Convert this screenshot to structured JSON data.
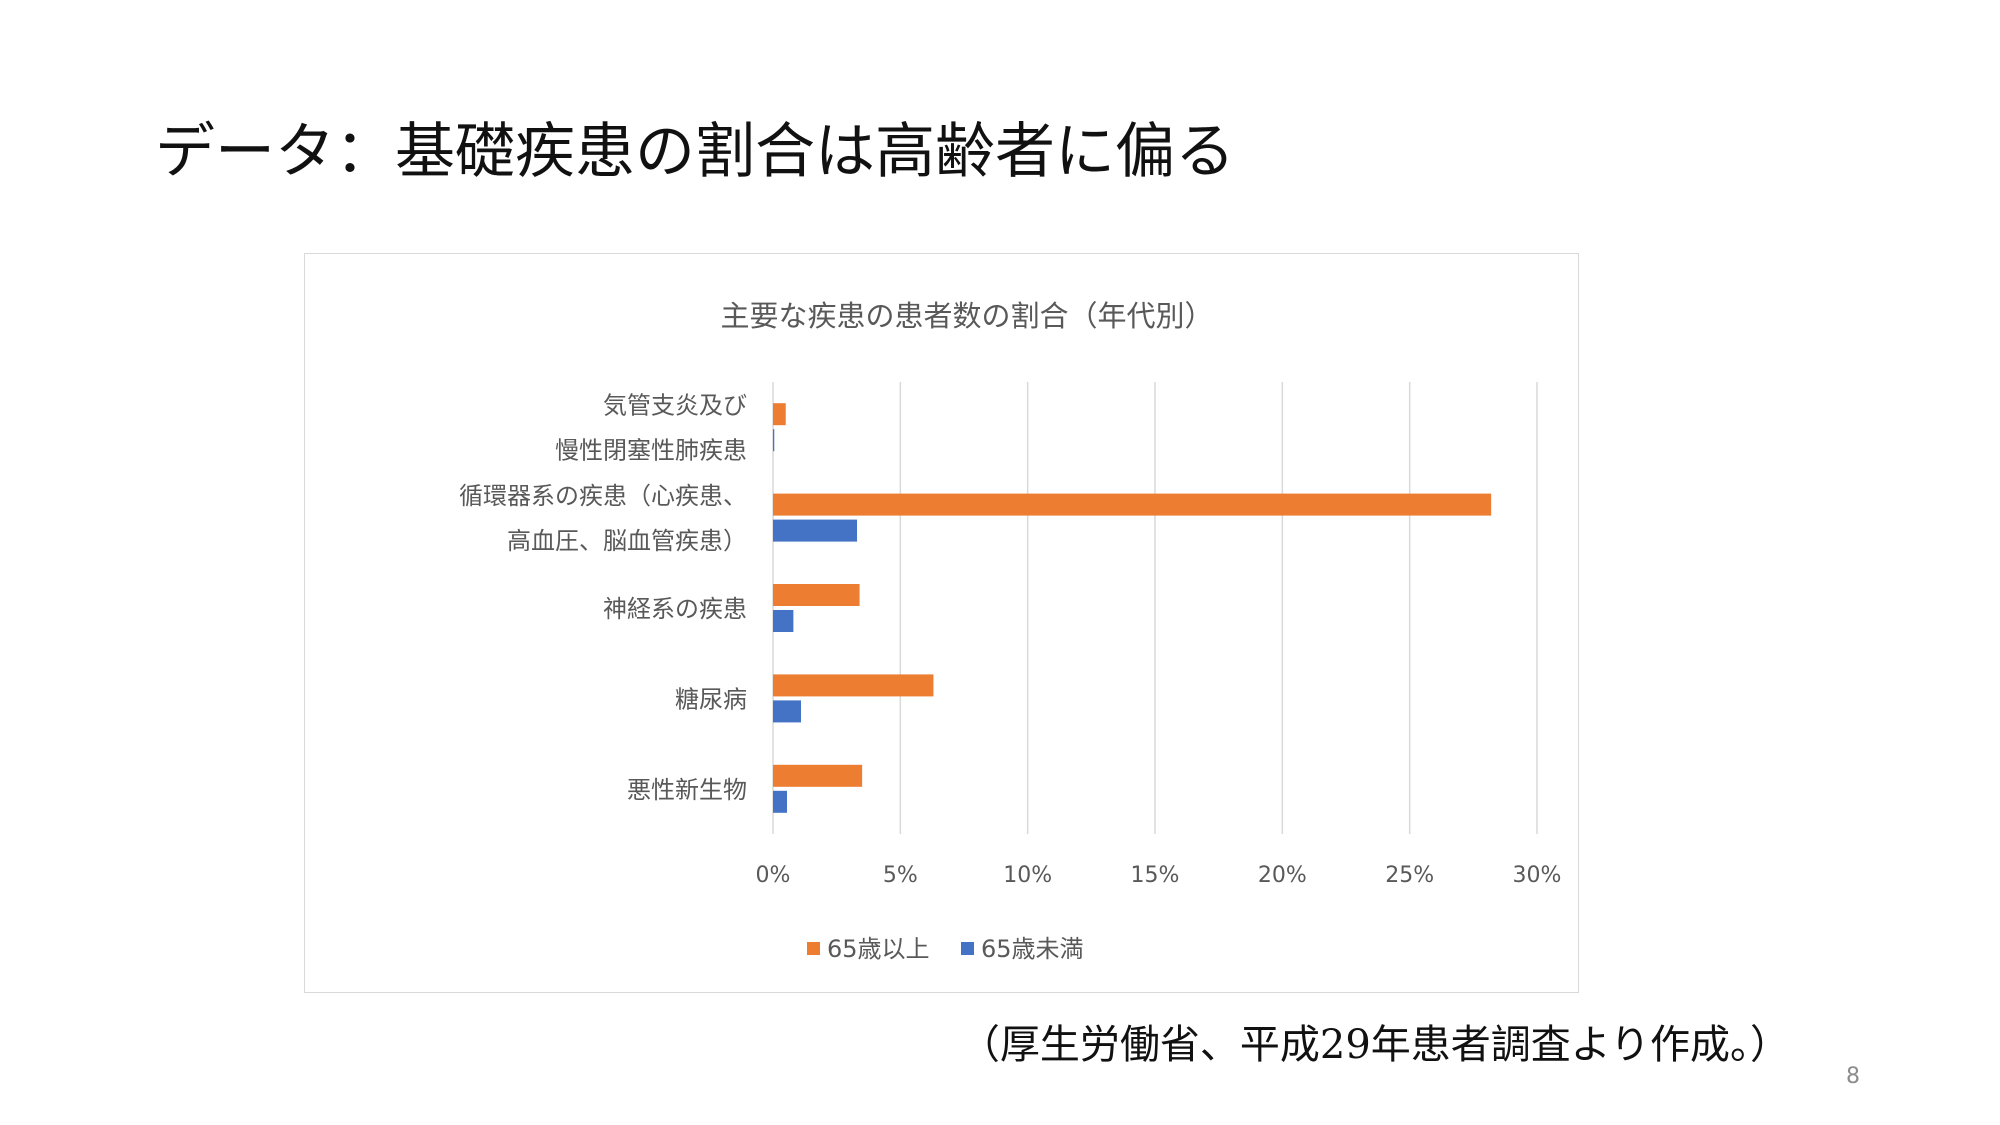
{
  "slide": {
    "title": "データ：基礎疾患の割合は高齢者に偏る",
    "source": "（厚生労働省、平成29年患者調査より作成。）",
    "page_number": "8"
  },
  "colors": {
    "series_65_over": "#ED7D31",
    "series_under_65": "#4472C4",
    "gridline": "#d9d9d9",
    "text": "#595959"
  },
  "chart_data": {
    "type": "bar",
    "orientation": "horizontal",
    "title": "主要な疾患の患者数の割合（年代別）",
    "xlabel": "",
    "ylabel": "",
    "xlim": [
      0,
      30
    ],
    "x_ticks": [
      "0%",
      "5%",
      "10%",
      "15%",
      "20%",
      "25%",
      "30%"
    ],
    "grid": true,
    "legend_position": "bottom",
    "categories": [
      [
        "気管支炎及び",
        "慢性閉塞性肺疾患"
      ],
      [
        "循環器系の疾患（心疾患、",
        "高血圧、脳血管疾患）"
      ],
      [
        "神経系の疾患"
      ],
      [
        "糖尿病"
      ],
      [
        "悪性新生物"
      ]
    ],
    "series": [
      {
        "name": "65歳以上",
        "values": [
          0.5,
          28.2,
          3.4,
          6.3,
          3.5
        ]
      },
      {
        "name": "65歳未満",
        "values": [
          0.05,
          3.3,
          0.8,
          1.1,
          0.55
        ]
      }
    ]
  }
}
